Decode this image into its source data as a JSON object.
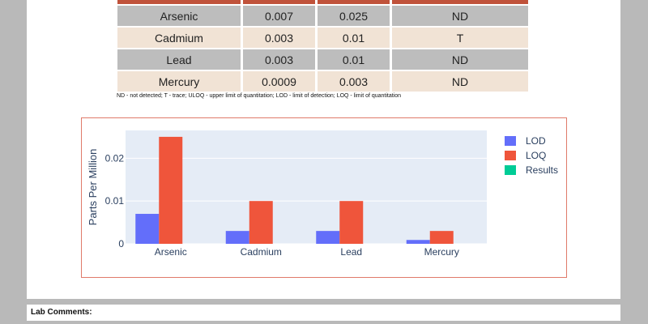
{
  "table": {
    "rows": [
      {
        "analyte": "Arsenic",
        "lod": "0.007",
        "loq": "0.025",
        "result": "ND"
      },
      {
        "analyte": "Cadmium",
        "lod": "0.003",
        "loq": "0.01",
        "result": "T"
      },
      {
        "analyte": "Lead",
        "lod": "0.003",
        "loq": "0.01",
        "result": "ND"
      },
      {
        "analyte": "Mercury",
        "lod": "0.0009",
        "loq": "0.003",
        "result": "ND"
      }
    ],
    "footnote": "ND - not detected; T - trace; ULOQ - upper limit of quantitation; LOD - limit of detection; LOQ - limit of quantitation"
  },
  "chart_data": {
    "type": "bar",
    "categories": [
      "Arsenic",
      "Cadmium",
      "Lead",
      "Mercury"
    ],
    "series": [
      {
        "name": "LOD",
        "values": [
          0.007,
          0.003,
          0.003,
          0.0009
        ],
        "color": "#636efa"
      },
      {
        "name": "LOQ",
        "values": [
          0.025,
          0.01,
          0.01,
          0.003
        ],
        "color": "#ef553b"
      },
      {
        "name": "Results",
        "values": [
          0,
          0,
          0,
          0
        ],
        "color": "#00cc96"
      }
    ],
    "ylabel": "Parts Per Million",
    "yticks": [
      "0",
      "0.01",
      "0.02"
    ],
    "ylim": [
      0,
      0.0265
    ],
    "grid": true,
    "legend_position": "right"
  },
  "lab_comments": {
    "label": "Lab Comments:"
  }
}
